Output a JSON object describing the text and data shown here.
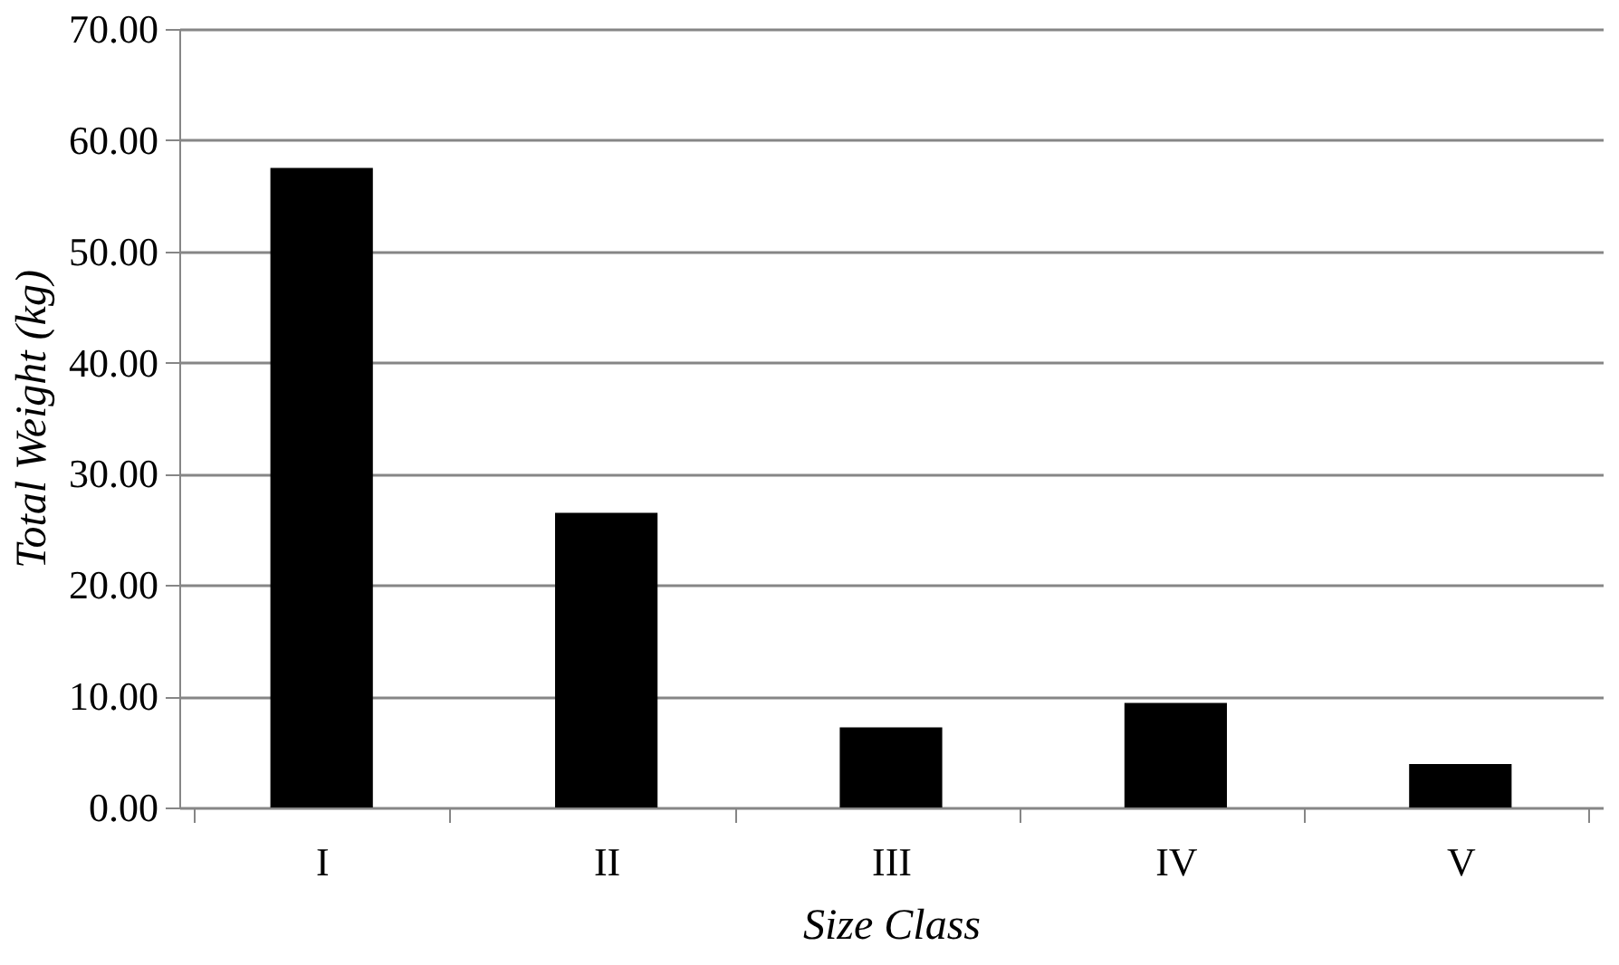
{
  "chart_data": {
    "type": "bar",
    "xlabel": "Size Class",
    "ylabel": "Total Weight (kg)",
    "categories": [
      "I",
      "II",
      "III",
      "IV",
      "V"
    ],
    "values": [
      57.5,
      26.5,
      7.2,
      9.4,
      3.9
    ],
    "color": "#000000",
    "ylim": [
      0,
      70
    ],
    "yticks": [
      {
        "value": 0,
        "label": "0.00"
      },
      {
        "value": 10,
        "label": "10.00"
      },
      {
        "value": 20,
        "label": "20.00"
      },
      {
        "value": 30,
        "label": "30.00"
      },
      {
        "value": 40,
        "label": "40.00"
      },
      {
        "value": 50,
        "label": "50.00"
      },
      {
        "value": 60,
        "label": "60.00"
      },
      {
        "value": 70,
        "label": "70.00"
      }
    ],
    "grid": "y"
  }
}
